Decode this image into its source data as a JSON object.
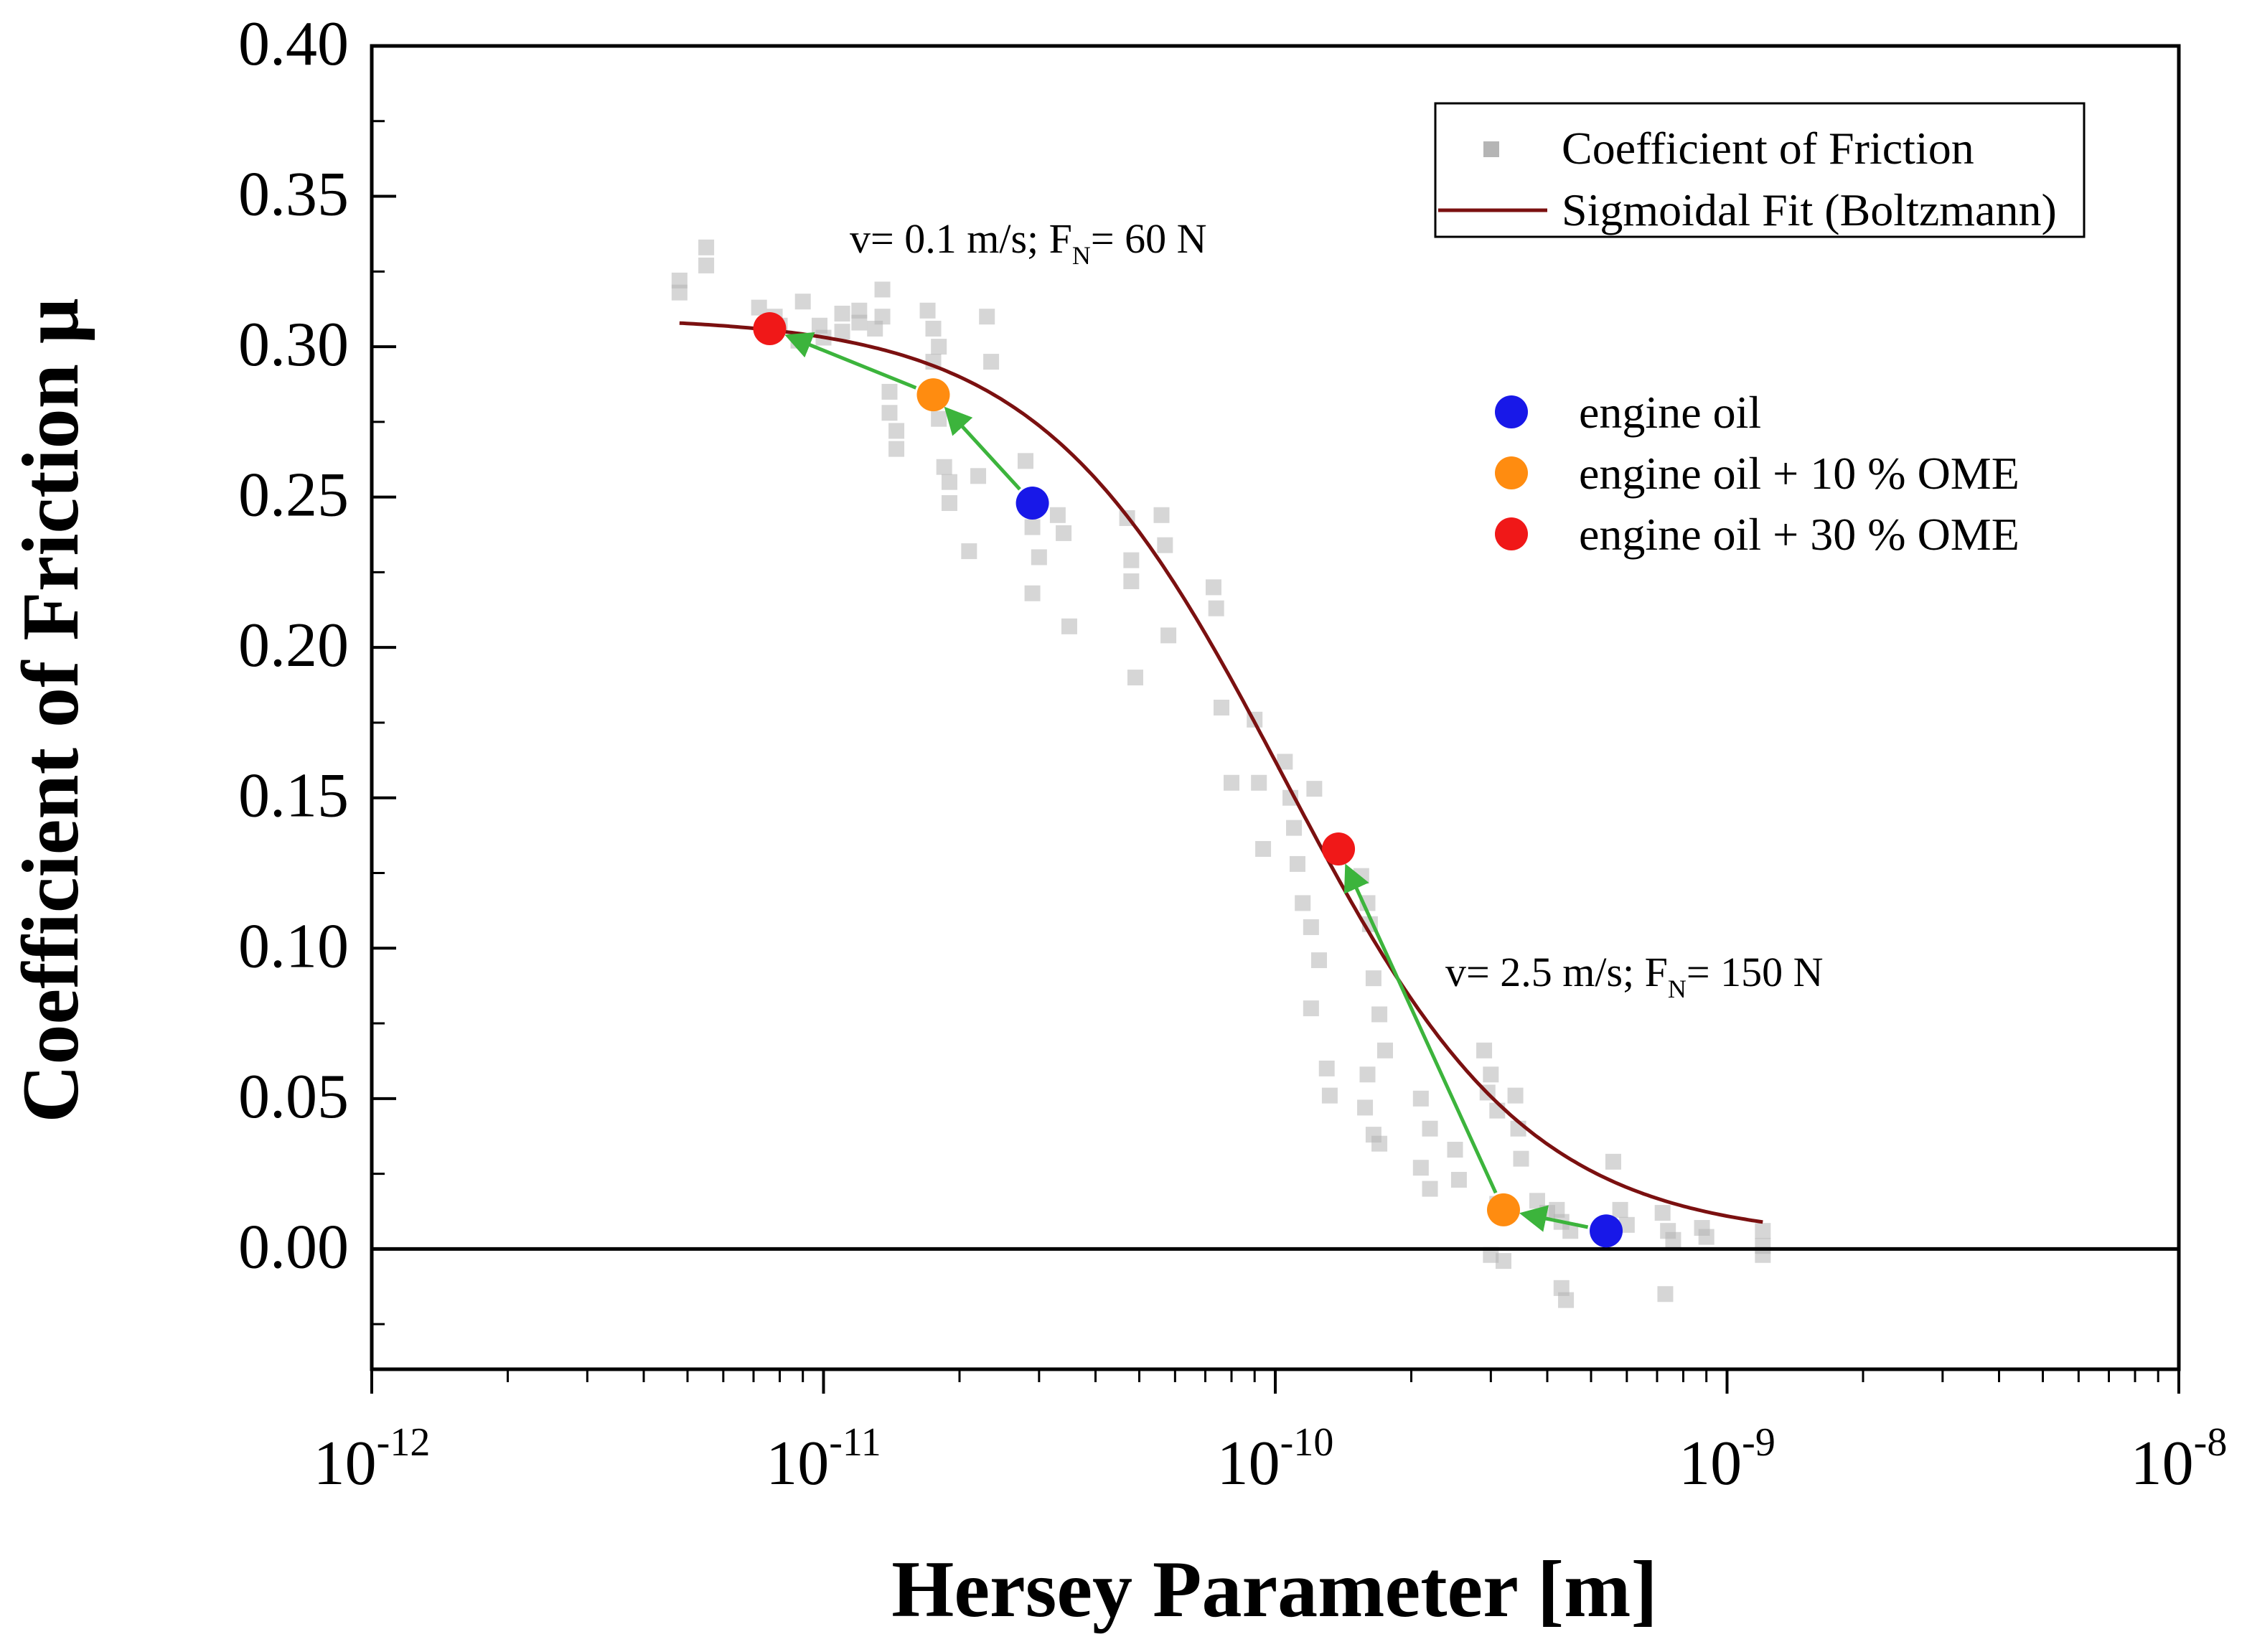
{
  "chart_data": {
    "type": "scatter",
    "xscale": "log",
    "xlim": [
      1e-12,
      1e-08
    ],
    "ylim": [
      -0.04,
      0.4
    ],
    "xlabel": "Hersey Parameter [m]",
    "ylabel": "Coefficient of Friction μ",
    "yticks": [
      0.0,
      0.05,
      0.1,
      0.15,
      0.2,
      0.25,
      0.3,
      0.35,
      0.4
    ],
    "ytick_labels": [
      "0.00",
      "0.05",
      "0.10",
      "0.15",
      "0.20",
      "0.25",
      "0.30",
      "0.35",
      "0.40"
    ],
    "xticks": [
      1e-12,
      1e-11,
      1e-10,
      1e-09,
      1e-08
    ],
    "xtick_labels": [
      {
        "base": "10",
        "exp": "-12"
      },
      {
        "base": "10",
        "exp": "-11"
      },
      {
        "base": "10",
        "exp": "-10"
      },
      {
        "base": "10",
        "exp": "-9"
      },
      {
        "base": "10",
        "exp": "-8"
      }
    ],
    "reference_line_y": 0.0,
    "legend_top": [
      {
        "label": "Coefficient of Friction",
        "marker": "square",
        "color": "#b5b5b5"
      },
      {
        "label": "Sigmoidal Fit (Boltzmann)",
        "marker": "line",
        "color": "#7b1010"
      }
    ],
    "legend_points": [
      {
        "label": "engine oil",
        "color": "#1818e8"
      },
      {
        "label": "engine oil + 10 % OME",
        "color": "#ff8c10"
      },
      {
        "label": "engine oil + 30 % OME",
        "color": "#f01818"
      }
    ],
    "annotations": [
      {
        "text": "v= 0.1 m/s; F",
        "sub": "N",
        "tail": "= 60 N",
        "x": 9.5e-12,
        "y": 0.335
      },
      {
        "text": "v= 2.5 m/s; F",
        "sub": "N",
        "tail": "= 150 N",
        "x": 3e-10,
        "y": 0.09
      }
    ],
    "fit": {
      "A1": 0.31,
      "A2": 0.003,
      "x0_log10": -9.98,
      "dx": 0.27,
      "xmin": 4.8e-12,
      "xmax": 1.2e-09
    },
    "highlight_points": [
      {
        "series": "engine oil",
        "x": 2.9e-11,
        "y": 0.248,
        "color": "#1818e8"
      },
      {
        "series": "engine oil + 10 % OME",
        "x": 1.75e-11,
        "y": 0.284,
        "color": "#ff8c10"
      },
      {
        "series": "engine oil + 30 % OME",
        "x": 7.6e-12,
        "y": 0.306,
        "color": "#f01818"
      },
      {
        "series": "engine oil",
        "x": 5.4e-10,
        "y": 0.006,
        "color": "#1818e8"
      },
      {
        "series": "engine oil + 10 % OME",
        "x": 3.2e-10,
        "y": 0.013,
        "color": "#ff8c10"
      },
      {
        "series": "engine oil + 30 % OME",
        "x": 1.38e-10,
        "y": 0.133,
        "color": "#f01818"
      }
    ],
    "arrows": [
      {
        "from": [
          2.9e-11,
          0.248
        ],
        "to": [
          1.75e-11,
          0.284
        ]
      },
      {
        "from": [
          1.75e-11,
          0.284
        ],
        "to": [
          7.6e-12,
          0.306
        ]
      },
      {
        "from": [
          5.4e-10,
          0.006
        ],
        "to": [
          3.2e-10,
          0.013
        ]
      },
      {
        "from": [
          3.2e-10,
          0.013
        ],
        "to": [
          1.38e-10,
          0.133
        ]
      }
    ],
    "scatter": [
      [
        4.8e-12,
        0.322
      ],
      [
        4.8e-12,
        0.318
      ],
      [
        5.5e-12,
        0.333
      ],
      [
        5.5e-12,
        0.327
      ],
      [
        7.2e-12,
        0.313
      ],
      [
        7.8e-12,
        0.31
      ],
      [
        8e-12,
        0.307
      ],
      [
        8.8e-12,
        0.302
      ],
      [
        9e-12,
        0.315
      ],
      [
        9.8e-12,
        0.307
      ],
      [
        1e-11,
        0.303
      ],
      [
        1.1e-11,
        0.311
      ],
      [
        1.1e-11,
        0.305
      ],
      [
        1.2e-11,
        0.312
      ],
      [
        1.2e-11,
        0.308
      ],
      [
        1.3e-11,
        0.306
      ],
      [
        1.35e-11,
        0.319
      ],
      [
        1.35e-11,
        0.31
      ],
      [
        1.4e-11,
        0.285
      ],
      [
        1.4e-11,
        0.278
      ],
      [
        1.45e-11,
        0.272
      ],
      [
        1.45e-11,
        0.266
      ],
      [
        1.7e-11,
        0.312
      ],
      [
        1.75e-11,
        0.306
      ],
      [
        1.75e-11,
        0.295
      ],
      [
        1.8e-11,
        0.3
      ],
      [
        1.8e-11,
        0.276
      ],
      [
        1.85e-11,
        0.26
      ],
      [
        1.9e-11,
        0.255
      ],
      [
        1.9e-11,
        0.248
      ],
      [
        2.1e-11,
        0.232
      ],
      [
        2.2e-11,
        0.257
      ],
      [
        2.3e-11,
        0.31
      ],
      [
        2.35e-11,
        0.295
      ],
      [
        2.8e-11,
        0.262
      ],
      [
        2.9e-11,
        0.24
      ],
      [
        3e-11,
        0.23
      ],
      [
        2.9e-11,
        0.218
      ],
      [
        3.3e-11,
        0.244
      ],
      [
        3.4e-11,
        0.238
      ],
      [
        3.5e-11,
        0.207
      ],
      [
        4.7e-11,
        0.243
      ],
      [
        4.8e-11,
        0.229
      ],
      [
        4.8e-11,
        0.222
      ],
      [
        4.9e-11,
        0.19
      ],
      [
        5.6e-11,
        0.244
      ],
      [
        5.7e-11,
        0.234
      ],
      [
        5.8e-11,
        0.204
      ],
      [
        7.3e-11,
        0.22
      ],
      [
        7.4e-11,
        0.213
      ],
      [
        7.6e-11,
        0.18
      ],
      [
        8e-11,
        0.155
      ],
      [
        9e-11,
        0.176
      ],
      [
        9.2e-11,
        0.155
      ],
      [
        9.4e-11,
        0.133
      ],
      [
        1.05e-10,
        0.162
      ],
      [
        1.08e-10,
        0.15
      ],
      [
        1.1e-10,
        0.14
      ],
      [
        1.12e-10,
        0.128
      ],
      [
        1.15e-10,
        0.115
      ],
      [
        1.2e-10,
        0.107
      ],
      [
        1.22e-10,
        0.153
      ],
      [
        1.25e-10,
        0.096
      ],
      [
        1.2e-10,
        0.08
      ],
      [
        1.3e-10,
        0.06
      ],
      [
        1.32e-10,
        0.051
      ],
      [
        1.55e-10,
        0.124
      ],
      [
        1.6e-10,
        0.115
      ],
      [
        1.62e-10,
        0.108
      ],
      [
        1.65e-10,
        0.09
      ],
      [
        1.7e-10,
        0.078
      ],
      [
        1.75e-10,
        0.066
      ],
      [
        1.6e-10,
        0.058
      ],
      [
        1.58e-10,
        0.047
      ],
      [
        1.65e-10,
        0.038
      ],
      [
        1.7e-10,
        0.035
      ],
      [
        2.1e-10,
        0.05
      ],
      [
        2.2e-10,
        0.04
      ],
      [
        2.1e-10,
        0.027
      ],
      [
        2.2e-10,
        0.02
      ],
      [
        2.5e-10,
        0.033
      ],
      [
        2.55e-10,
        0.023
      ],
      [
        2.9e-10,
        0.066
      ],
      [
        3e-10,
        0.058
      ],
      [
        2.95e-10,
        0.052
      ],
      [
        3.1e-10,
        0.046
      ],
      [
        3.1e-10,
        0.015
      ],
      [
        3e-10,
        -0.002
      ],
      [
        3.2e-10,
        -0.004
      ],
      [
        3.4e-10,
        0.051
      ],
      [
        3.45e-10,
        0.04
      ],
      [
        3.5e-10,
        0.03
      ],
      [
        3.8e-10,
        0.016
      ],
      [
        4e-10,
        0.012
      ],
      [
        4.2e-10,
        0.013
      ],
      [
        4.3e-10,
        0.009
      ],
      [
        4.5e-10,
        0.006
      ],
      [
        4.3e-10,
        -0.013
      ],
      [
        4.4e-10,
        -0.017
      ],
      [
        5.6e-10,
        0.029
      ],
      [
        5.8e-10,
        0.013
      ],
      [
        6e-10,
        0.008
      ],
      [
        7.2e-10,
        0.012
      ],
      [
        7.4e-10,
        0.006
      ],
      [
        7.6e-10,
        0.003
      ],
      [
        7.3e-10,
        -0.015
      ],
      [
        8.8e-10,
        0.007
      ],
      [
        9e-10,
        0.004
      ],
      [
        1.2e-09,
        0.006
      ],
      [
        1.2e-09,
        0.001
      ],
      [
        1.2e-09,
        -0.002
      ]
    ]
  },
  "colors": {
    "scatter_fill": "#b5b5b5",
    "scatter_opacity": 0.55,
    "fit_line": "#7b1010",
    "arrow": "#3cb43c",
    "axis": "#000000"
  }
}
